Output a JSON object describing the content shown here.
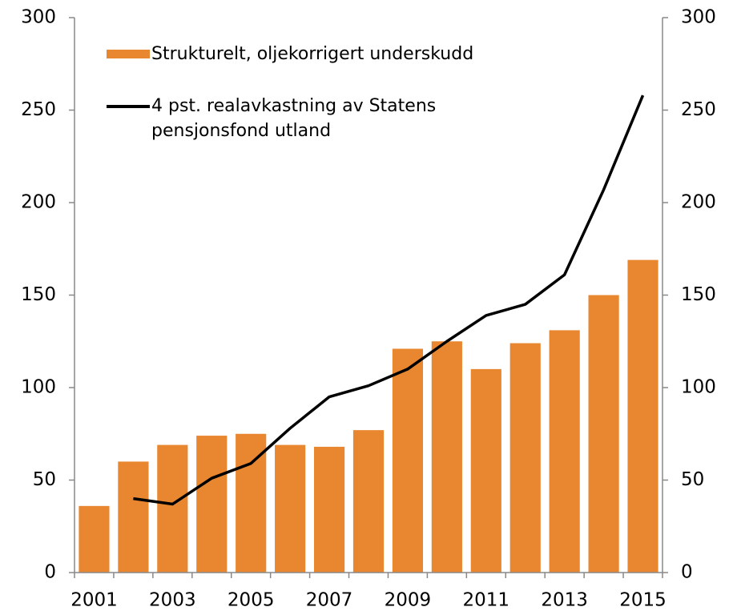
{
  "chart_data": {
    "type": "bar",
    "categories": [
      "2001",
      null,
      "2003",
      null,
      "2005",
      null,
      "2007",
      null,
      "2009",
      null,
      "2011",
      null,
      "2013",
      null,
      "2015"
    ],
    "series": [
      {
        "name": "Strukturelt, oljekorrigert underskudd",
        "type": "bar",
        "color": "#e98731",
        "values": [
          36,
          60,
          69,
          74,
          75,
          69,
          68,
          77,
          121,
          125,
          110,
          124,
          131,
          150,
          169
        ]
      },
      {
        "name": "4 pst. realavkastning av Statens pensjonsfond utland",
        "type": "line",
        "color": "#000000",
        "values": [
          null,
          40,
          37,
          51,
          59,
          78,
          95,
          101,
          110,
          125,
          139,
          145,
          161,
          207,
          258
        ]
      }
    ],
    "ylim": [
      0,
      300
    ],
    "yticks": [
      0,
      50,
      100,
      150,
      200,
      250,
      300
    ],
    "y2lim": [
      0,
      300
    ],
    "y2ticks": [
      0,
      50,
      100,
      150,
      200,
      250,
      300
    ],
    "grid": false,
    "legend": "upper left"
  }
}
